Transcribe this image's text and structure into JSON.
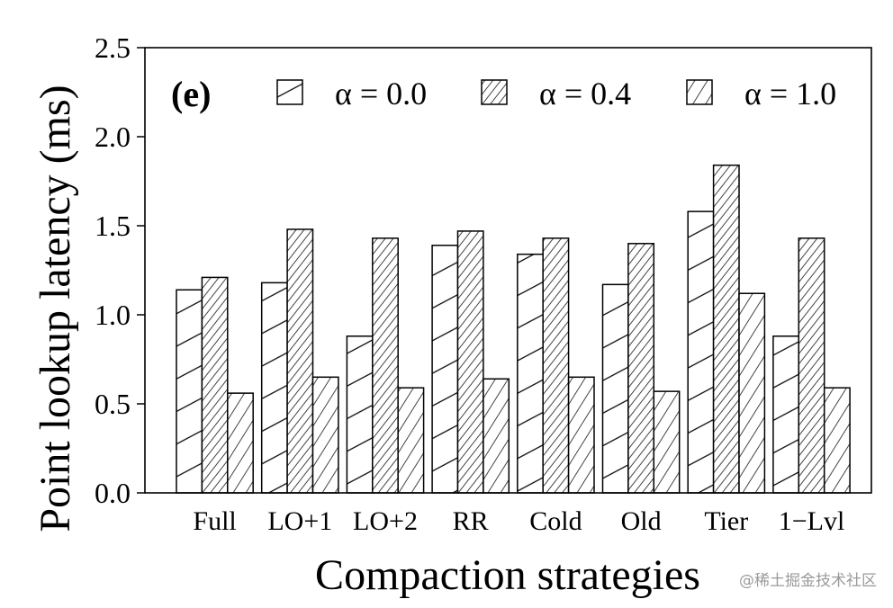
{
  "chart_data": {
    "type": "bar",
    "panel_label": "(e)",
    "xlabel": "Compaction strategies",
    "ylabel": "Point lookup latency (ms)",
    "ylim": [
      0,
      2.5
    ],
    "yticks": [
      0.0,
      0.5,
      1.0,
      1.5,
      2.0,
      2.5
    ],
    "ytick_labels": [
      "0.0",
      "0.5",
      "1.0",
      "1.5",
      "2.0",
      "2.5"
    ],
    "categories": [
      "Full",
      "LO+1",
      "LO+2",
      "RR",
      "Cold",
      "Old",
      "Tier",
      "1−Lvl"
    ],
    "legend_position": "top-right",
    "grid": false,
    "series": [
      {
        "name": "α = 0.0",
        "pattern": "backslash-wide",
        "values": [
          1.14,
          1.18,
          0.88,
          1.39,
          1.34,
          1.17,
          1.58,
          0.88
        ]
      },
      {
        "name": "α = 0.4",
        "pattern": "slash-dense",
        "values": [
          1.21,
          1.48,
          1.43,
          1.47,
          1.43,
          1.4,
          1.84,
          1.43
        ]
      },
      {
        "name": "α = 1.0",
        "pattern": "slash-medium",
        "values": [
          0.56,
          0.65,
          0.59,
          0.64,
          0.65,
          0.57,
          1.12,
          0.59
        ]
      }
    ]
  },
  "watermark": "@稀土掘金技术社区"
}
